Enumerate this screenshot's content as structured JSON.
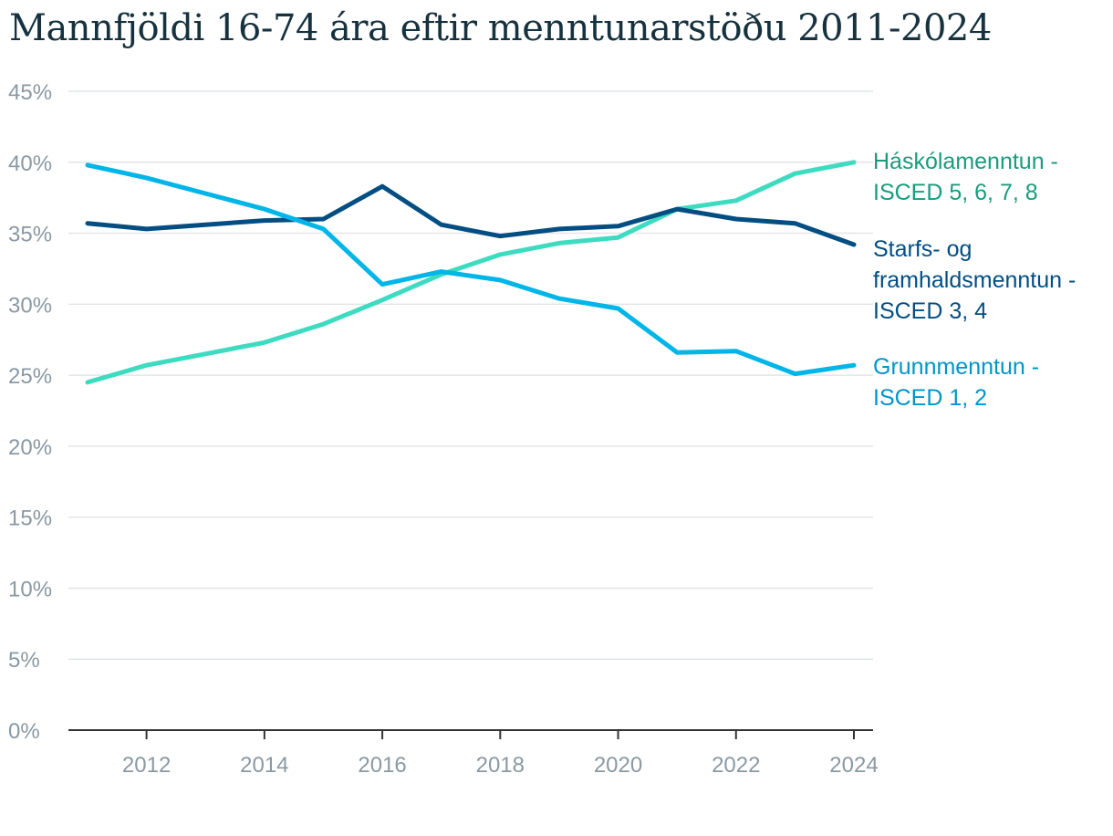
{
  "chart_data": {
    "type": "line",
    "title": "Mannfjöldi 16-74 ára eftir menntunarstöðu 2011-2024",
    "xlabel": "",
    "ylabel": "",
    "x": [
      2011,
      2012,
      2013,
      2014,
      2015,
      2016,
      2017,
      2018,
      2019,
      2020,
      2021,
      2022,
      2023,
      2024
    ],
    "x_ticks": [
      "2012",
      "2014",
      "2016",
      "2018",
      "2020",
      "2022",
      "2024"
    ],
    "y_ticks": [
      "0%",
      "5%",
      "10%",
      "15%",
      "20%",
      "25%",
      "30%",
      "35%",
      "40%",
      "45%"
    ],
    "ylim": [
      0,
      45
    ],
    "grid": true,
    "legend": "direct labels at right end of lines",
    "series": [
      {
        "name": "Háskólamenntun - ISCED 5, 6, 7, 8",
        "label_lines": [
          "Háskólamenntun -",
          "ISCED 5, 6, 7, 8"
        ],
        "color": "#3ddbc0",
        "label_color": "#1a9b7e",
        "values": [
          24.5,
          25.7,
          26.5,
          27.3,
          28.6,
          30.3,
          32.1,
          33.5,
          34.3,
          34.7,
          36.7,
          37.3,
          39.2,
          40.0
        ]
      },
      {
        "name": "Starfs- og framhaldsmenntun - ISCED 3, 4",
        "label_lines": [
          "Starfs- og",
          "framhaldsmenntun -",
          "ISCED 3, 4"
        ],
        "color": "#024e82",
        "label_color": "#024e82",
        "values": [
          35.7,
          35.3,
          35.6,
          35.9,
          36.0,
          38.3,
          35.6,
          34.8,
          35.3,
          35.5,
          36.7,
          36.0,
          35.7,
          34.2
        ]
      },
      {
        "name": "Grunnmenntun - ISCED 1, 2",
        "label_lines": [
          "Grunnmenntun -",
          "ISCED 1, 2"
        ],
        "color": "#00b5e8",
        "label_color": "#0195c8",
        "values": [
          39.8,
          38.9,
          37.8,
          36.7,
          35.3,
          31.4,
          32.3,
          31.7,
          30.4,
          29.7,
          26.6,
          26.7,
          25.1,
          25.7
        ]
      }
    ]
  },
  "colors": {
    "title": "#16323f",
    "grid": "#e2e5e8",
    "axis": "#333333",
    "tick_label": "#8a99a3"
  }
}
